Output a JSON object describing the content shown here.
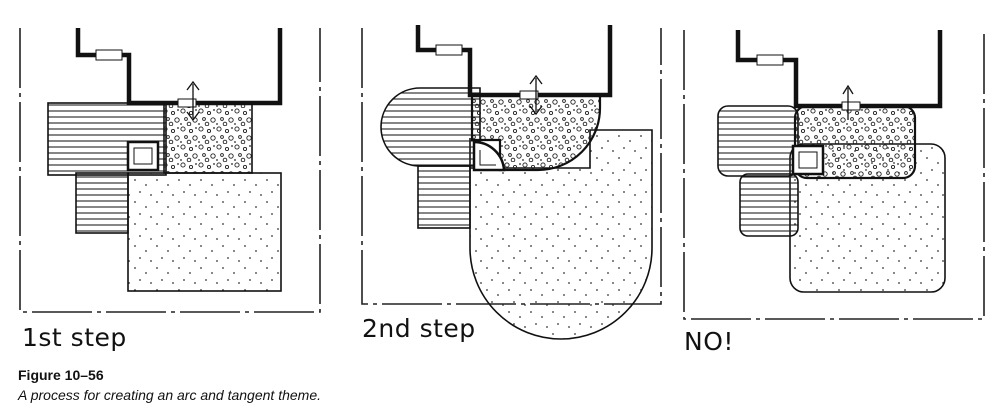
{
  "panels": [
    {
      "label": "1st step"
    },
    {
      "label": "2nd step"
    },
    {
      "label": "NO!"
    }
  ],
  "caption": {
    "figure": "Figure 10–56",
    "text": "A process for creating an arc and tangent theme."
  }
}
